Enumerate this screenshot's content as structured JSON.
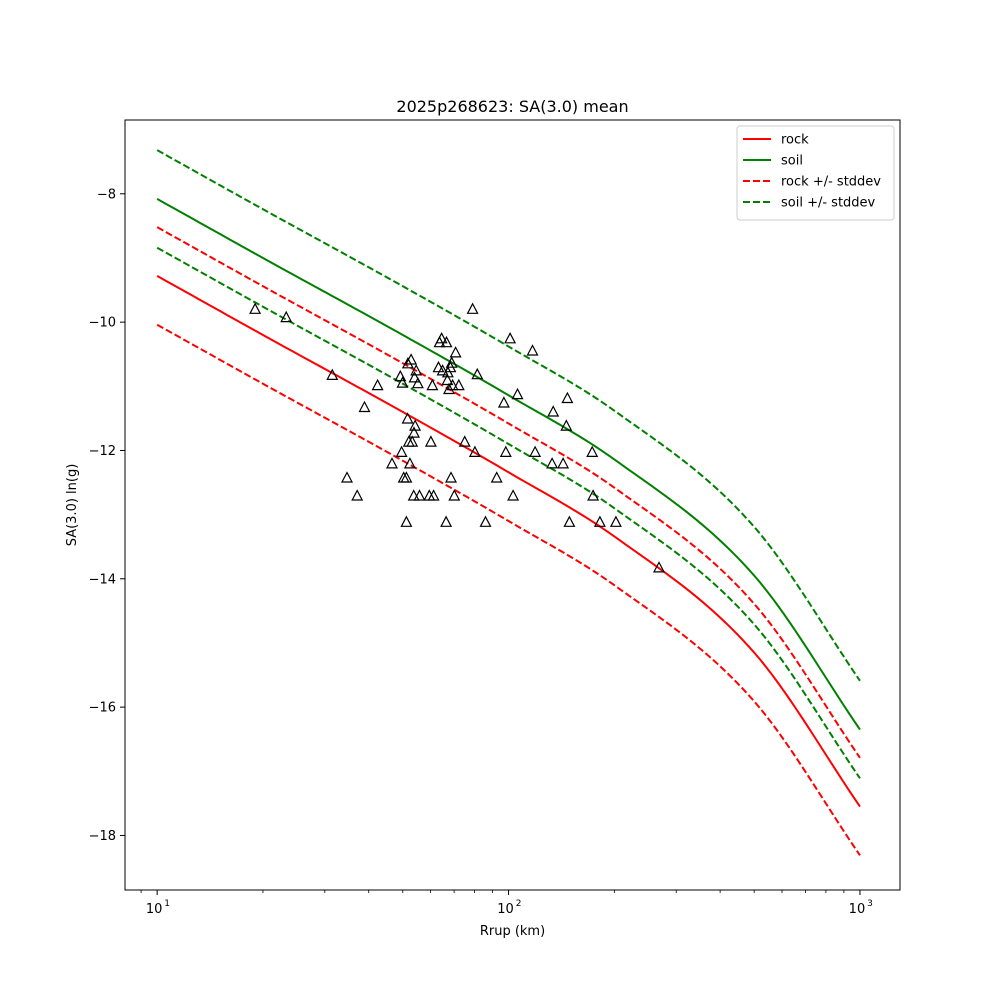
{
  "chart_data": {
    "type": "line",
    "title": "2025p268623: SA(3.0) mean",
    "xlabel": "Rrup (km)",
    "ylabel": "SA(3.0) ln(g)",
    "x_scale": "log",
    "xlim": [
      8.1,
      1300
    ],
    "ylim": [
      -18.85,
      -6.85
    ],
    "x_ticks": [
      10,
      100,
      1000
    ],
    "x_tick_labels": [
      "10",
      "10",
      "10"
    ],
    "x_tick_exponents": [
      "1",
      "2",
      "3"
    ],
    "y_ticks": [
      -18,
      -16,
      -14,
      -12,
      -10,
      -8
    ],
    "y_tick_labels": [
      "−18",
      "−16",
      "−14",
      "−12",
      "−10",
      "−8"
    ],
    "grid": false,
    "legend_position": "top-right",
    "series": [
      {
        "name": "rock",
        "color": "#ff0000",
        "style": "solid",
        "x": [
          10,
          20,
          50,
          100,
          200,
          500,
          1000
        ],
        "y": [
          -9.28,
          -10.2,
          -11.4,
          -12.34,
          -13.34,
          -15.15,
          -17.55
        ]
      },
      {
        "name": "soil",
        "color": "#008000",
        "style": "solid",
        "x": [
          10,
          20,
          50,
          100,
          200,
          500,
          1000
        ],
        "y": [
          -8.08,
          -9.0,
          -10.2,
          -11.14,
          -12.14,
          -13.95,
          -16.35
        ]
      },
      {
        "name": "rock +/- stddev",
        "color": "#ff0000",
        "style": "dashed",
        "x": [
          10,
          20,
          50,
          100,
          200,
          500,
          1000
        ],
        "y": [
          -8.52,
          -9.44,
          -10.64,
          -11.58,
          -12.58,
          -14.39,
          -16.79
        ]
      },
      {
        "name": "",
        "color": "#ff0000",
        "style": "dashed",
        "x": [
          10,
          20,
          50,
          100,
          200,
          500,
          1000
        ],
        "y": [
          -10.04,
          -10.96,
          -12.16,
          -13.1,
          -14.1,
          -15.91,
          -18.31
        ]
      },
      {
        "name": "soil +/- stddev",
        "color": "#008000",
        "style": "dashed",
        "x": [
          10,
          20,
          50,
          100,
          200,
          500,
          1000
        ],
        "y": [
          -7.32,
          -8.24,
          -9.44,
          -10.38,
          -11.38,
          -13.19,
          -15.59
        ]
      },
      {
        "name": "",
        "color": "#008000",
        "style": "dashed",
        "x": [
          10,
          20,
          50,
          100,
          200,
          500,
          1000
        ],
        "y": [
          -8.84,
          -9.76,
          -10.96,
          -11.9,
          -12.9,
          -14.71,
          -17.11
        ]
      }
    ],
    "observations": {
      "marker": "triangle",
      "color": "#000000",
      "points": [
        [
          19,
          -9.8
        ],
        [
          23.3,
          -9.93
        ],
        [
          31.5,
          -10.83
        ],
        [
          34.7,
          -12.43
        ],
        [
          37.1,
          -12.71
        ],
        [
          38.9,
          -11.33
        ],
        [
          42.4,
          -10.99
        ],
        [
          46.6,
          -12.21
        ],
        [
          49.2,
          -10.85
        ],
        [
          49.6,
          -12.03
        ],
        [
          49.9,
          -10.95
        ],
        [
          50.3,
          -12.43
        ],
        [
          51.2,
          -12.43
        ],
        [
          51.2,
          -13.12
        ],
        [
          51.7,
          -10.65
        ],
        [
          51.6,
          -11.51
        ],
        [
          52.0,
          -11.87
        ],
        [
          52.4,
          -12.21
        ],
        [
          52.8,
          -10.59
        ],
        [
          53.2,
          -11.87
        ],
        [
          53.7,
          -12.71
        ],
        [
          53.8,
          -11.73
        ],
        [
          54.0,
          -10.87
        ],
        [
          54.2,
          -11.62
        ],
        [
          54.6,
          -10.76
        ],
        [
          55.2,
          -10.96
        ],
        [
          55.8,
          -12.71
        ],
        [
          59.5,
          -12.71
        ],
        [
          60.1,
          -11.87
        ],
        [
          60.7,
          -10.99
        ],
        [
          61.2,
          -12.71
        ],
        [
          63.2,
          -10.71
        ],
        [
          63.6,
          -10.32
        ],
        [
          64.5,
          -10.26
        ],
        [
          64.9,
          -10.76
        ],
        [
          66.4,
          -13.12
        ],
        [
          66.6,
          -10.32
        ],
        [
          67.0,
          -10.91
        ],
        [
          67.2,
          -10.79
        ],
        [
          67.7,
          -11.05
        ],
        [
          68.3,
          -10.71
        ],
        [
          68.6,
          -12.43
        ],
        [
          68.9,
          -10.64
        ],
        [
          69.3,
          -10.99
        ],
        [
          70.1,
          -12.71
        ],
        [
          70.7,
          -10.48
        ],
        [
          72.2,
          -10.99
        ],
        [
          75.0,
          -11.87
        ],
        [
          79.0,
          -9.8
        ],
        [
          80.2,
          -12.03
        ],
        [
          81.5,
          -10.82
        ],
        [
          86.0,
          -13.12
        ],
        [
          92.5,
          -12.43
        ],
        [
          97.0,
          -11.26
        ],
        [
          98.2,
          -12.03
        ],
        [
          101.0,
          -10.26
        ],
        [
          103.0,
          -12.71
        ],
        [
          106.0,
          -11.13
        ],
        [
          117.0,
          -10.45
        ],
        [
          119.0,
          -12.03
        ],
        [
          133.0,
          -12.21
        ],
        [
          134.0,
          -11.4
        ],
        [
          143.0,
          -12.21
        ],
        [
          146.0,
          -11.62
        ],
        [
          147.0,
          -11.19
        ],
        [
          149.0,
          -13.12
        ],
        [
          173.0,
          -12.03
        ],
        [
          174.0,
          -12.71
        ],
        [
          182.0,
          -13.12
        ],
        [
          202.0,
          -13.12
        ],
        [
          268.0,
          -13.83
        ]
      ]
    }
  }
}
